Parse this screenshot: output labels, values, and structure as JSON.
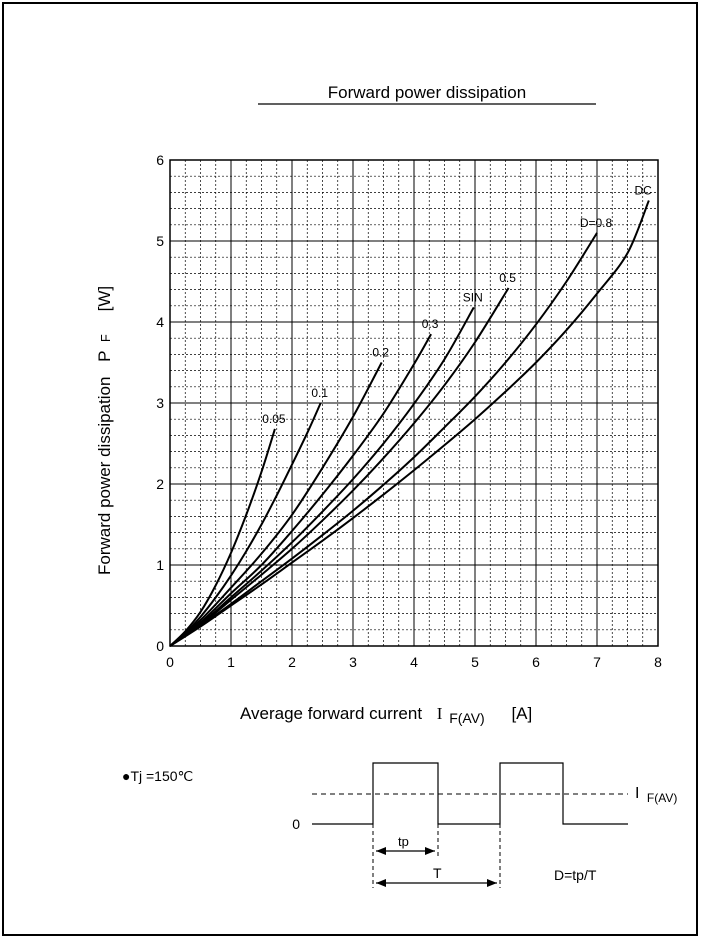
{
  "chart_data": {
    "type": "line",
    "title": "Forward power dissipation",
    "xlabel": "Average forward current",
    "xlabel_symbol": "I",
    "xlabel_subscript": "F(AV)",
    "xlabel_unit": "[A]",
    "ylabel": "Forward power dissipation",
    "ylabel_symbol": "P",
    "ylabel_subscript": "F",
    "ylabel_unit": "[W]",
    "xlim": [
      0,
      8
    ],
    "ylim": [
      0,
      6
    ],
    "x_ticks": [
      "0",
      "1",
      "2",
      "3",
      "4",
      "5",
      "6",
      "7",
      "8"
    ],
    "y_ticks": [
      "0",
      "1",
      "2",
      "3",
      "4",
      "5",
      "6"
    ],
    "grid": true,
    "series": [
      {
        "name": "0.05",
        "x": [
          0,
          0.25,
          0.5,
          0.75,
          1.0,
          1.25,
          1.5,
          1.72
        ],
        "y": [
          0,
          0.18,
          0.42,
          0.75,
          1.15,
          1.62,
          2.15,
          2.68
        ]
      },
      {
        "name": "0.1",
        "x": [
          0,
          0.25,
          0.5,
          0.75,
          1.0,
          1.25,
          1.5,
          1.75,
          2.0,
          2.25,
          2.47
        ],
        "y": [
          0,
          0.16,
          0.36,
          0.6,
          0.87,
          1.17,
          1.5,
          1.86,
          2.24,
          2.63,
          3.0
        ]
      },
      {
        "name": "0.2",
        "x": [
          0,
          0.5,
          1.0,
          1.5,
          2.0,
          2.5,
          3.0,
          3.47
        ],
        "y": [
          0,
          0.32,
          0.72,
          1.14,
          1.62,
          2.2,
          2.83,
          3.5
        ]
      },
      {
        "name": "0.3",
        "x": [
          0,
          0.5,
          1.0,
          1.5,
          2.0,
          2.5,
          3.0,
          3.5,
          4.0,
          4.28
        ],
        "y": [
          0,
          0.29,
          0.65,
          1.0,
          1.42,
          1.87,
          2.35,
          2.87,
          3.48,
          3.85
        ]
      },
      {
        "name": "SIN",
        "x": [
          0,
          0.5,
          1.0,
          1.5,
          2.0,
          2.5,
          3.0,
          3.5,
          4.0,
          4.5,
          4.98
        ],
        "y": [
          0,
          0.27,
          0.6,
          0.93,
          1.28,
          1.66,
          2.06,
          2.5,
          2.99,
          3.54,
          4.18
        ]
      },
      {
        "name": "0.5",
        "x": [
          0,
          0.5,
          1.0,
          1.5,
          2.0,
          2.5,
          3.0,
          3.5,
          4.0,
          4.5,
          5.0,
          5.55
        ],
        "y": [
          0,
          0.26,
          0.57,
          0.88,
          1.2,
          1.55,
          1.92,
          2.32,
          2.75,
          3.22,
          3.75,
          4.42
        ]
      },
      {
        "name": "D=0.8",
        "x": [
          0,
          0.5,
          1.0,
          1.5,
          2.0,
          2.5,
          3.0,
          3.5,
          4.0,
          4.5,
          5.0,
          5.5,
          6.0,
          6.5,
          7.0
        ],
        "y": [
          0,
          0.25,
          0.52,
          0.8,
          1.08,
          1.37,
          1.67,
          1.99,
          2.33,
          2.7,
          3.08,
          3.5,
          3.97,
          4.5,
          5.1
        ]
      },
      {
        "name": "DC",
        "x": [
          0,
          0.5,
          1.0,
          1.5,
          2.0,
          2.5,
          3.0,
          3.5,
          4.0,
          4.5,
          5.0,
          5.5,
          6.0,
          6.5,
          7.0,
          7.5,
          7.85
        ],
        "y": [
          0,
          0.24,
          0.5,
          0.76,
          1.03,
          1.3,
          1.58,
          1.87,
          2.17,
          2.48,
          2.8,
          3.14,
          3.5,
          3.9,
          4.35,
          4.85,
          5.5
        ]
      }
    ]
  },
  "notes": {
    "condition": "●Tj =150℃",
    "waveform_zero": "0",
    "waveform_level_symbol": "I",
    "waveform_level_subscript": "F(AV)",
    "tp_label": "tp",
    "T_label": "T",
    "duty_formula": "D=tp/T"
  }
}
